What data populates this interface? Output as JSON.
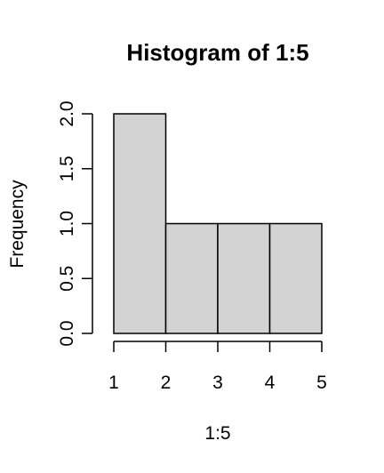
{
  "chart_data": {
    "type": "bar",
    "title": "Histogram of 1:5",
    "xlabel": "1:5",
    "ylabel": "Frequency",
    "bins": [
      {
        "start": 1,
        "end": 2,
        "count": 2
      },
      {
        "start": 2,
        "end": 3,
        "count": 1
      },
      {
        "start": 3,
        "end": 4,
        "count": 1
      },
      {
        "start": 4,
        "end": 5,
        "count": 1
      }
    ],
    "xlim": [
      1,
      5
    ],
    "ylim": [
      0,
      2
    ],
    "x_ticks": [
      "1",
      "2",
      "3",
      "4",
      "5"
    ],
    "y_ticks": [
      "0.0",
      "0.5",
      "1.0",
      "1.5",
      "2.0"
    ],
    "grid": false,
    "bar_color": "#d3d3d3",
    "border_color": "#000000"
  }
}
